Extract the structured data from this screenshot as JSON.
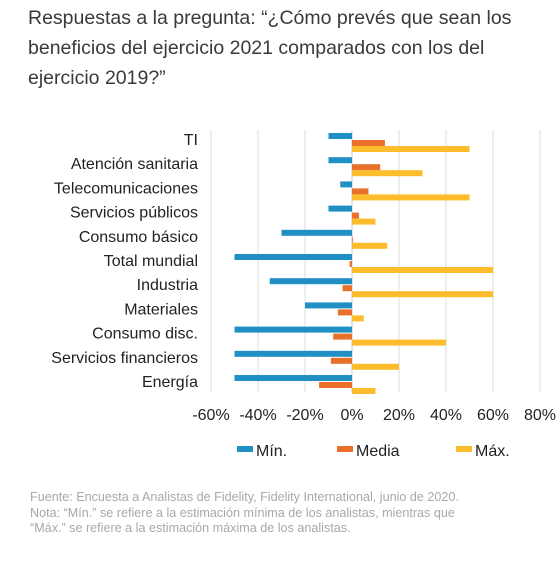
{
  "title": "Respuestas a la pregunta: “¿Cómo prevés que sean los beneficios del ejercicio 2021 comparados con los del ejercicio 2019?”",
  "chart_data": {
    "type": "bar",
    "orientation": "horizontal",
    "categories": [
      "TI",
      "Atención sanitaria",
      "Telecomunicaciones",
      "Servicios públicos",
      "Consumo básico",
      "Total mundial",
      "Industria",
      "Materiales",
      "Consumo disc.",
      "Servicios financieros",
      "Energía"
    ],
    "series": [
      {
        "name": "Mín.",
        "color": "#1f8fc4",
        "values": [
          -10,
          -10,
          -5,
          -10,
          -30,
          -50,
          -35,
          -20,
          -50,
          -50,
          -50
        ]
      },
      {
        "name": "Media",
        "color": "#e8702a",
        "values": [
          14,
          12,
          7,
          3,
          0,
          -1,
          -4,
          -6,
          -8,
          -9,
          -14
        ]
      },
      {
        "name": "Máx.",
        "color": "#fcbc2c",
        "values": [
          50,
          30,
          50,
          10,
          15,
          60,
          60,
          5,
          40,
          20,
          10
        ]
      }
    ],
    "xlim": [
      -60,
      80
    ],
    "xticks": [
      "-60%",
      "-40%",
      "-20%",
      "0%",
      "20%",
      "40%",
      "60%",
      "80%"
    ],
    "grid": "vertical",
    "legend_position": "bottom"
  },
  "footnote": {
    "line1": "Fuente: Encuesta a Analistas de Fidelity, Fidelity International, junio de 2020.",
    "line2": "Nota: “Mín.” se refiere a la estimación mínima de los analistas, mientras que",
    "line3": "“Máx.” se refiere a la estimación máxima de los analistas."
  }
}
